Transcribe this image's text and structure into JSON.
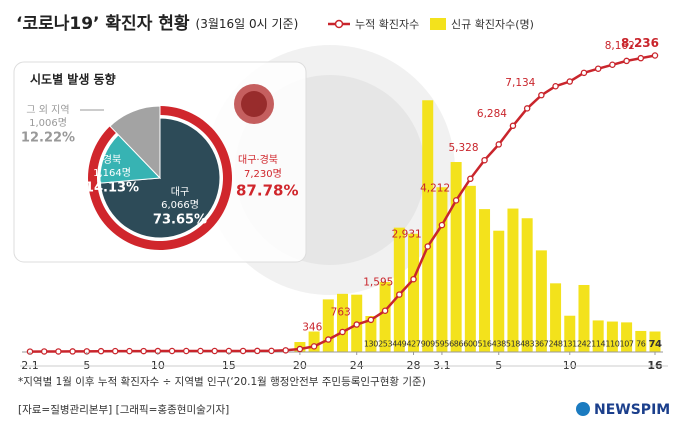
{
  "chart_data": [
    {
      "type": "combo",
      "title": "‘코로나19’ 확진자 현황",
      "subtitle": "(3월16일 0시 기준)",
      "categories": [
        "2.1",
        null,
        null,
        null,
        "5",
        null,
        null,
        null,
        null,
        "10",
        null,
        null,
        null,
        null,
        "15",
        null,
        null,
        null,
        null,
        "20",
        null,
        null,
        null,
        "24",
        null,
        null,
        null,
        "28",
        null,
        "3.1",
        null,
        null,
        null,
        "5",
        null,
        null,
        null,
        null,
        "10",
        null,
        null,
        null,
        null,
        null,
        "16"
      ],
      "series": [
        {
          "name": "누적 확진자수",
          "type": "line",
          "axis": "y",
          "color": "#c9252c",
          "values": [
            12,
            15,
            15,
            16,
            18,
            23,
            24,
            24,
            25,
            27,
            28,
            28,
            28,
            28,
            28,
            29,
            30,
            31,
            46,
            82,
            156,
            346,
            556,
            763,
            893,
            1146,
            1595,
            2022,
            2931,
            3526,
            4212,
            4812,
            5328,
            5766,
            6284,
            6767,
            7134,
            7382,
            7513,
            7755,
            7869,
            7979,
            8086,
            8162,
            8236
          ],
          "value_labels": [
            null,
            null,
            null,
            null,
            null,
            null,
            null,
            null,
            null,
            null,
            null,
            null,
            null,
            null,
            null,
            null,
            null,
            null,
            null,
            null,
            null,
            "346",
            null,
            "763",
            null,
            null,
            "1,595",
            null,
            "2,931",
            null,
            "4,212",
            null,
            "5,328",
            null,
            "6,284",
            null,
            "7,134",
            null,
            null,
            null,
            null,
            null,
            null,
            "8,162",
            "8,236"
          ]
        },
        {
          "name": "신규 확진자수(명)",
          "type": "bar",
          "axis": "y2",
          "color": "#f3e21c",
          "values": [
            null,
            null,
            null,
            null,
            null,
            null,
            null,
            null,
            null,
            null,
            null,
            null,
            null,
            null,
            null,
            null,
            null,
            null,
            null,
            36,
            74,
            190,
            210,
            207,
            130,
            253,
            449,
            427,
            909,
            595,
            686,
            600,
            516,
            438,
            518,
            483,
            367,
            248,
            131,
            242,
            114,
            110,
            107,
            76,
            74
          ],
          "value_labels": [
            null,
            null,
            null,
            null,
            null,
            null,
            null,
            null,
            null,
            null,
            null,
            null,
            null,
            null,
            null,
            null,
            null,
            null,
            null,
            null,
            null,
            null,
            null,
            null,
            "130",
            "253",
            "449",
            "427",
            "909",
            "595",
            "686",
            "600",
            "516",
            "438",
            "518",
            "483",
            "367",
            "248",
            "131",
            "242",
            "114",
            "110",
            "107",
            "76",
            "74"
          ]
        }
      ],
      "ylim": [
        0,
        9000
      ],
      "y2lim": [
        0,
        1170
      ]
    },
    {
      "type": "pie",
      "title": "시도별 발생 동향",
      "categories": [
        "대구",
        "경북",
        "그 외 지역"
      ],
      "values": [
        73.65,
        14.13,
        12.22
      ],
      "value_labels": [
        "73.65%",
        "14.13%",
        "12.22%"
      ],
      "count_labels": [
        "6,066명",
        "1,164명",
        "1,006명"
      ],
      "colors": [
        "#2d4b58",
        "#37b3b3",
        "#a3a3a3"
      ],
      "group": {
        "name": "대구·경북",
        "count_label": "7,230명",
        "value": 87.78,
        "value_label": "87.78%",
        "color": "#d0262c"
      }
    }
  ],
  "footer": {
    "note": "*지역별 1월 이후 누적 확진자수 ÷ 지역별 인구(‘20.1월 행정안전부 주민등록인구현황 기준)",
    "source": "[자료=질병관리본부] [그래픽=홍종현미술기자]",
    "logo": "NEWSPIM"
  }
}
